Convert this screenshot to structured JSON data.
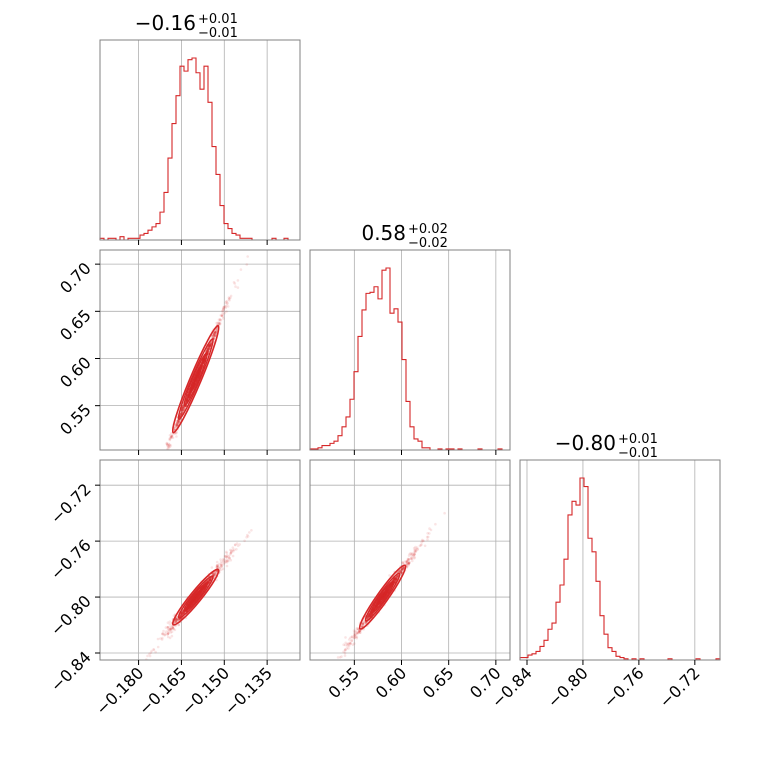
{
  "chart_data": {
    "type": "scatter",
    "subtype": "corner-plot",
    "color": "#d62728",
    "grid": true,
    "parameters": [
      {
        "title_main": "−0.16",
        "title_plus": "+0.01",
        "title_minus": "−0.01",
        "median": -0.16
      },
      {
        "title_main": "0.58",
        "title_plus": "+0.02",
        "title_minus": "−0.02",
        "median": 0.58
      },
      {
        "title_main": "−0.80",
        "title_plus": "+0.01",
        "title_minus": "−0.01",
        "median": -0.8
      }
    ],
    "ranges": [
      [
        -0.1935,
        -0.1235
      ],
      [
        0.503,
        0.715
      ],
      [
        -0.845,
        -0.702
      ]
    ],
    "ticks": [
      {
        "values": [
          -0.18,
          -0.165,
          -0.15,
          -0.135
        ],
        "labels": [
          "−0.180",
          "−0.165",
          "−0.150",
          "−0.135"
        ]
      },
      {
        "values": [
          0.55,
          0.6,
          0.65,
          0.7
        ],
        "labels": [
          "0.55",
          "0.60",
          "0.65",
          "0.70"
        ]
      },
      {
        "values": [
          -0.84,
          -0.8,
          -0.76,
          -0.72
        ],
        "labels": [
          "−0.84",
          "−0.80",
          "−0.76",
          "−0.72"
        ]
      }
    ],
    "histograms": [
      {
        "bins": [
          -0.1935,
          -0.1235
        ],
        "counts": [
          1,
          0,
          1,
          1,
          0,
          2,
          0,
          1,
          1,
          1,
          3,
          4,
          6,
          8,
          10,
          17,
          29,
          50,
          71,
          88,
          106,
          103,
          110,
          111,
          102,
          92,
          106,
          84,
          57,
          40,
          21,
          10,
          7,
          4,
          3,
          1,
          1,
          1,
          0,
          0,
          0,
          0,
          0,
          1,
          0,
          0,
          1,
          0,
          0,
          0
        ]
      },
      {
        "bins": [
          0.503,
          0.715
        ],
        "counts": [
          1,
          1,
          2,
          4,
          4,
          6,
          8,
          13,
          21,
          30,
          46,
          71,
          103,
          127,
          142,
          143,
          148,
          137,
          163,
          165,
          124,
          128,
          116,
          82,
          44,
          21,
          10,
          8,
          2,
          2,
          0,
          0,
          1,
          0,
          1,
          1,
          0,
          1,
          0,
          0,
          0,
          0,
          1,
          0,
          0,
          0,
          0,
          1,
          0,
          0
        ]
      },
      {
        "bins": [
          -0.845,
          -0.702
        ],
        "counts": [
          2,
          2,
          4,
          5,
          7,
          11,
          16,
          25,
          30,
          47,
          61,
          82,
          118,
          129,
          126,
          148,
          141,
          99,
          88,
          64,
          36,
          21,
          10,
          7,
          3,
          2,
          1,
          0,
          1,
          0,
          1,
          0,
          0,
          0,
          0,
          0,
          0,
          1,
          0,
          0,
          0,
          0,
          0,
          0,
          1,
          0,
          0,
          0,
          0,
          1
        ]
      }
    ],
    "pairs": [
      {
        "x_param": 0,
        "y_param": 1,
        "slope": 7.2,
        "intercept": 1.73
      },
      {
        "x_param": 0,
        "y_param": 2,
        "slope": 2.5,
        "intercept": -0.4
      },
      {
        "x_param": 1,
        "y_param": 2,
        "slope": 0.95,
        "intercept": -1.351
      }
    ]
  }
}
